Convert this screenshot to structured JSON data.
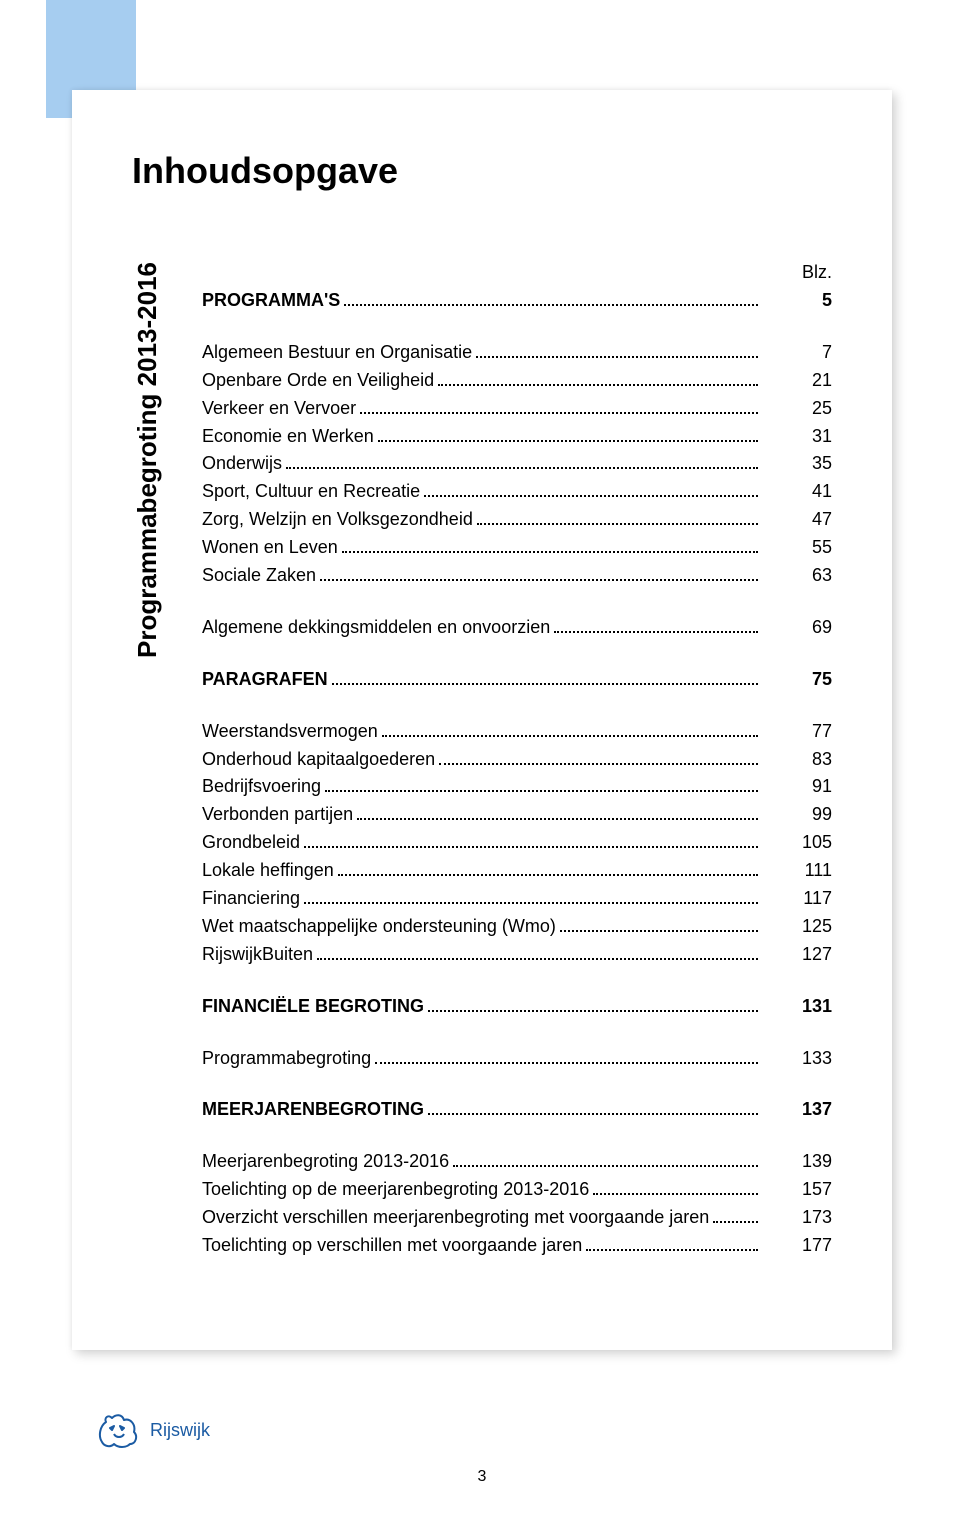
{
  "colors": {
    "blue_strip": "#a6cdf0",
    "logo_blue": "#1b5ba3",
    "text": "#000000",
    "bg": "#ffffff",
    "shadow": "rgba(0,0,0,0.18)"
  },
  "typography": {
    "title_fontsize": 36,
    "body_fontsize": 18,
    "sidebar_fontsize": 26,
    "font_family": "Arial"
  },
  "title": "Inhoudsopgave",
  "sidebar_label": "Programmabegroting 2013-2016",
  "blz_label": "Blz.",
  "toc": [
    {
      "label": "PROGRAMMA'S",
      "page": "5",
      "bold": true
    },
    {
      "gap": true
    },
    {
      "label": "Algemeen Bestuur en  Organisatie",
      "page": "7"
    },
    {
      "label": "Openbare Orde en Veiligheid",
      "page": "21"
    },
    {
      "label": "Verkeer en Vervoer",
      "page": "25"
    },
    {
      "label": "Economie en Werken",
      "page": "31"
    },
    {
      "label": "Onderwijs",
      "page": "35"
    },
    {
      "label": "Sport, Cultuur en Recreatie",
      "page": "41"
    },
    {
      "label": "Zorg, Welzijn en Volksgezondheid",
      "page": "47"
    },
    {
      "label": "Wonen en Leven",
      "page": "55"
    },
    {
      "label": "Sociale Zaken",
      "page": "63"
    },
    {
      "gap": true
    },
    {
      "label": "Algemene dekkingsmiddelen en onvoorzien",
      "page": "69"
    },
    {
      "gap": true
    },
    {
      "label": "PARAGRAFEN",
      "page": "75",
      "bold": true
    },
    {
      "gap": true
    },
    {
      "label": "Weerstandsvermogen",
      "page": "77"
    },
    {
      "label": "Onderhoud kapitaalgoederen",
      "page": "83"
    },
    {
      "label": "Bedrijfsvoering",
      "page": "91"
    },
    {
      "label": "Verbonden partijen",
      "page": "99"
    },
    {
      "label": "Grondbeleid",
      "page": "105"
    },
    {
      "label": "Lokale heffingen",
      "page": "111"
    },
    {
      "label": "Financiering",
      "page": "117"
    },
    {
      "label": "Wet maatschappelijke ondersteuning (Wmo)",
      "page": "125"
    },
    {
      "label": "RijswijkBuiten",
      "page": "127"
    },
    {
      "gap": true
    },
    {
      "label": "FINANCIËLE BEGROTING",
      "page": "131",
      "bold": true
    },
    {
      "gap": true
    },
    {
      "label": "Programmabegroting",
      "page": "133"
    },
    {
      "gap": true
    },
    {
      "label": "MEERJARENBEGROTING",
      "page": "137",
      "bold": true
    },
    {
      "gap": true
    },
    {
      "label": "Meerjarenbegroting 2013-2016",
      "page": "139"
    },
    {
      "label": "Toelichting op de meerjarenbegroting 2013-2016",
      "page": "157"
    },
    {
      "label": "Overzicht verschillen meerjarenbegroting met voorgaande jaren",
      "page": "173"
    },
    {
      "label": "Toelichting op verschillen met voorgaande jaren",
      "page": "177"
    }
  ],
  "footer": {
    "logo_text": "Rijswijk",
    "page_number": "3"
  }
}
